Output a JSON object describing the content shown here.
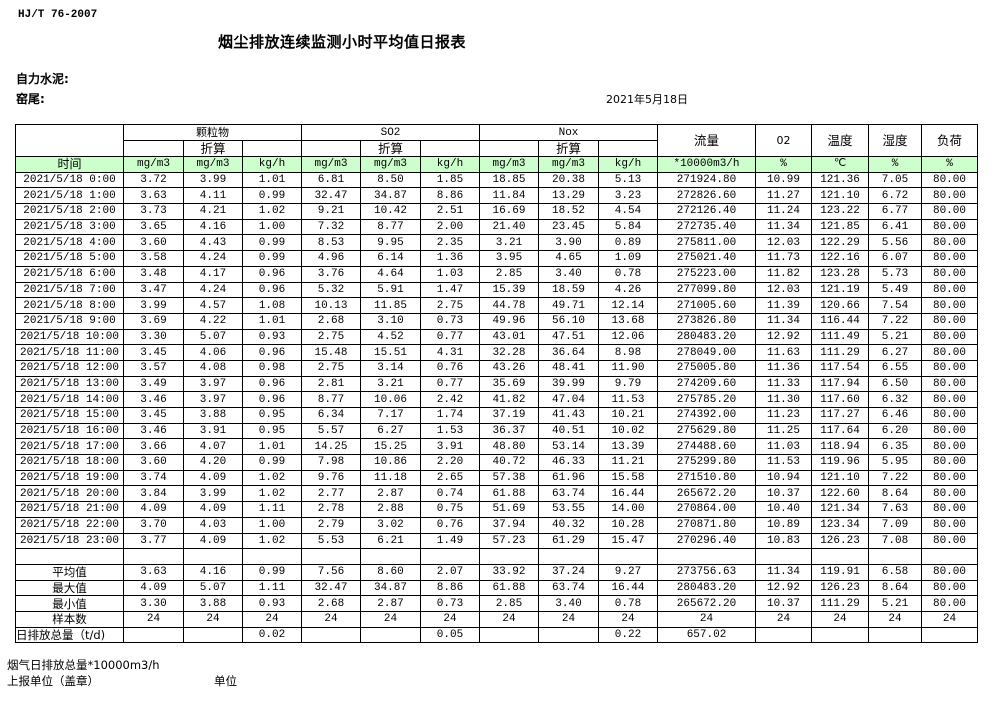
{
  "header": {
    "standard": "HJ/T  76-2007",
    "title": "烟尘排放连续监测小时平均值日报表",
    "company": "自力水泥:",
    "location": "窑尾:",
    "date": "2021年5月18日"
  },
  "table": {
    "groups": {
      "particulate": "颗粒物",
      "so2": "SO2",
      "nox": "Nox",
      "converted": "折算",
      "flow": "流量",
      "o2": "02",
      "temp": "温度",
      "humidity": "湿度",
      "load": "负荷"
    },
    "units": [
      "时间",
      "mg/m3",
      "mg/m3",
      "kg/h",
      "mg/m3",
      "mg/m3",
      "kg/h",
      "mg/m3",
      "mg/m3",
      "kg/h",
      "*10000m3/h",
      "%",
      "℃",
      "%",
      "%"
    ],
    "rows": [
      [
        "2021/5/18 0:00",
        "3.72",
        "3.99",
        "1.01",
        "6.81",
        "8.50",
        "1.85",
        "18.85",
        "20.38",
        "5.13",
        "271924.80",
        "10.99",
        "121.36",
        "7.05",
        "80.00"
      ],
      [
        "2021/5/18 1:00",
        "3.63",
        "4.11",
        "0.99",
        "32.47",
        "34.87",
        "8.86",
        "11.84",
        "13.29",
        "3.23",
        "272826.60",
        "11.27",
        "121.10",
        "6.72",
        "80.00"
      ],
      [
        "2021/5/18 2:00",
        "3.73",
        "4.21",
        "1.02",
        "9.21",
        "10.42",
        "2.51",
        "16.69",
        "18.52",
        "4.54",
        "272126.40",
        "11.24",
        "123.22",
        "6.77",
        "80.00"
      ],
      [
        "2021/5/18 3:00",
        "3.65",
        "4.16",
        "1.00",
        "7.32",
        "8.77",
        "2.00",
        "21.40",
        "23.45",
        "5.84",
        "272735.40",
        "11.34",
        "121.85",
        "6.41",
        "80.00"
      ],
      [
        "2021/5/18 4:00",
        "3.60",
        "4.43",
        "0.99",
        "8.53",
        "9.95",
        "2.35",
        "3.21",
        "3.90",
        "0.89",
        "275811.00",
        "12.03",
        "122.29",
        "5.56",
        "80.00"
      ],
      [
        "2021/5/18 5:00",
        "3.58",
        "4.24",
        "0.99",
        "4.96",
        "6.14",
        "1.36",
        "3.95",
        "4.65",
        "1.09",
        "275021.40",
        "11.73",
        "122.16",
        "6.07",
        "80.00"
      ],
      [
        "2021/5/18 6:00",
        "3.48",
        "4.17",
        "0.96",
        "3.76",
        "4.64",
        "1.03",
        "2.85",
        "3.40",
        "0.78",
        "275223.00",
        "11.82",
        "123.28",
        "5.73",
        "80.00"
      ],
      [
        "2021/5/18 7:00",
        "3.47",
        "4.24",
        "0.96",
        "5.32",
        "5.91",
        "1.47",
        "15.39",
        "18.59",
        "4.26",
        "277099.80",
        "12.03",
        "121.19",
        "5.49",
        "80.00"
      ],
      [
        "2021/5/18 8:00",
        "3.99",
        "4.57",
        "1.08",
        "10.13",
        "11.85",
        "2.75",
        "44.78",
        "49.71",
        "12.14",
        "271005.60",
        "11.39",
        "120.66",
        "7.54",
        "80.00"
      ],
      [
        "2021/5/18 9:00",
        "3.69",
        "4.22",
        "1.01",
        "2.68",
        "3.10",
        "0.73",
        "49.96",
        "56.10",
        "13.68",
        "273826.80",
        "11.34",
        "116.44",
        "7.22",
        "80.00"
      ],
      [
        "2021/5/18 10:00",
        "3.30",
        "5.07",
        "0.93",
        "2.75",
        "4.52",
        "0.77",
        "43.01",
        "47.51",
        "12.06",
        "280483.20",
        "12.92",
        "111.49",
        "5.21",
        "80.00"
      ],
      [
        "2021/5/18 11:00",
        "3.45",
        "4.06",
        "0.96",
        "15.48",
        "15.51",
        "4.31",
        "32.28",
        "36.64",
        "8.98",
        "278049.00",
        "11.63",
        "111.29",
        "6.27",
        "80.00"
      ],
      [
        "2021/5/18 12:00",
        "3.57",
        "4.08",
        "0.98",
        "2.75",
        "3.14",
        "0.76",
        "43.26",
        "48.41",
        "11.90",
        "275005.80",
        "11.36",
        "117.54",
        "6.55",
        "80.00"
      ],
      [
        "2021/5/18 13:00",
        "3.49",
        "3.97",
        "0.96",
        "2.81",
        "3.21",
        "0.77",
        "35.69",
        "39.99",
        "9.79",
        "274209.60",
        "11.33",
        "117.94",
        "6.50",
        "80.00"
      ],
      [
        "2021/5/18 14:00",
        "3.46",
        "3.97",
        "0.96",
        "8.77",
        "10.06",
        "2.42",
        "41.82",
        "47.04",
        "11.53",
        "275785.20",
        "11.30",
        "117.60",
        "6.32",
        "80.00"
      ],
      [
        "2021/5/18 15:00",
        "3.45",
        "3.88",
        "0.95",
        "6.34",
        "7.17",
        "1.74",
        "37.19",
        "41.43",
        "10.21",
        "274392.00",
        "11.23",
        "117.27",
        "6.46",
        "80.00"
      ],
      [
        "2021/5/18 16:00",
        "3.46",
        "3.91",
        "0.95",
        "5.57",
        "6.27",
        "1.53",
        "36.37",
        "40.51",
        "10.02",
        "275629.80",
        "11.25",
        "117.64",
        "6.20",
        "80.00"
      ],
      [
        "2021/5/18 17:00",
        "3.66",
        "4.07",
        "1.01",
        "14.25",
        "15.25",
        "3.91",
        "48.80",
        "53.14",
        "13.39",
        "274488.60",
        "11.03",
        "118.94",
        "6.35",
        "80.00"
      ],
      [
        "2021/5/18 18:00",
        "3.60",
        "4.20",
        "0.99",
        "7.98",
        "10.86",
        "2.20",
        "40.72",
        "46.33",
        "11.21",
        "275299.80",
        "11.53",
        "119.96",
        "5.95",
        "80.00"
      ],
      [
        "2021/5/18 19:00",
        "3.74",
        "4.09",
        "1.02",
        "9.76",
        "11.18",
        "2.65",
        "57.38",
        "61.96",
        "15.58",
        "271510.80",
        "10.94",
        "121.10",
        "7.22",
        "80.00"
      ],
      [
        "2021/5/18 20:00",
        "3.84",
        "3.99",
        "1.02",
        "2.77",
        "2.87",
        "0.74",
        "61.88",
        "63.74",
        "16.44",
        "265672.20",
        "10.37",
        "122.60",
        "8.64",
        "80.00"
      ],
      [
        "2021/5/18 21:00",
        "4.09",
        "4.09",
        "1.11",
        "2.78",
        "2.88",
        "0.75",
        "51.69",
        "53.55",
        "14.00",
        "270864.00",
        "10.40",
        "121.34",
        "7.63",
        "80.00"
      ],
      [
        "2021/5/18 22:00",
        "3.70",
        "4.03",
        "1.00",
        "2.79",
        "3.02",
        "0.76",
        "37.94",
        "40.32",
        "10.28",
        "270871.80",
        "10.89",
        "123.34",
        "7.09",
        "80.00"
      ],
      [
        "2021/5/18 23:00",
        "3.77",
        "4.09",
        "1.02",
        "5.53",
        "6.21",
        "1.49",
        "57.23",
        "61.29",
        "15.47",
        "270296.40",
        "10.83",
        "126.23",
        "7.08",
        "80.00"
      ]
    ],
    "summary": [
      [
        "平均值",
        "3.63",
        "4.16",
        "0.99",
        "7.56",
        "8.60",
        "2.07",
        "33.92",
        "37.24",
        "9.27",
        "273756.63",
        "11.34",
        "119.91",
        "6.58",
        "80.00"
      ],
      [
        "最大值",
        "4.09",
        "5.07",
        "1.11",
        "32.47",
        "34.87",
        "8.86",
        "61.88",
        "63.74",
        "16.44",
        "280483.20",
        "12.92",
        "126.23",
        "8.64",
        "80.00"
      ],
      [
        "最小值",
        "3.30",
        "3.88",
        "0.93",
        "2.68",
        "2.87",
        "0.73",
        "2.85",
        "3.40",
        "0.78",
        "265672.20",
        "10.37",
        "111.29",
        "5.21",
        "80.00"
      ],
      [
        "样本数",
        "24",
        "24",
        "24",
        "24",
        "24",
        "24",
        "24",
        "24",
        "24",
        "24",
        "24",
        "24",
        "24",
        "24"
      ],
      [
        "日排放总量（t/d)",
        "",
        "",
        "0.02",
        "",
        "",
        "0.05",
        "",
        "",
        "0.22",
        "657.02",
        "",
        "",
        "",
        ""
      ]
    ]
  },
  "footer": {
    "flue_gas_total": "烟气日排放总量*10000m3/h",
    "reporting_unit": "上报单位（盖章）",
    "unit": "单位"
  },
  "colors": {
    "unit_row_bg": "#ccffcc",
    "border": "#000000"
  }
}
